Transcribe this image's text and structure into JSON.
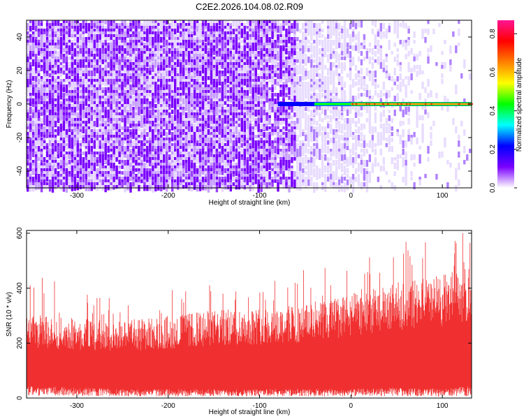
{
  "title": "C2E2.2026.104.08.02.R09",
  "chart_data": [
    {
      "type": "heatmap",
      "title": "C2E2.2026.104.08.02.R09",
      "xlabel": "Height of straight line (km)",
      "ylabel": "Frequency (Hz)",
      "xlim": [
        -355,
        132
      ],
      "ylim": [
        -50,
        50
      ],
      "x_ticks": [
        -300,
        -200,
        -100,
        0,
        100
      ],
      "y_ticks": [
        -40,
        -20,
        0,
        20,
        40
      ],
      "colorbar": {
        "label": "Normalized spectral amplitude",
        "range": [
          0,
          0.87
        ],
        "ticks": [
          0.0,
          0.2,
          0.4,
          0.6,
          0.8
        ],
        "colors": [
          "#ffffff",
          "#7a00ff",
          "#0000ff",
          "#00ffff",
          "#00ff00",
          "#ffff00",
          "#ff8000",
          "#ff0000",
          "#ff1493"
        ]
      },
      "signal_line": {
        "frequency_hz": 0,
        "start_km": -80,
        "end_km": 132
      },
      "grid": false
    },
    {
      "type": "area",
      "xlabel": "Height of straight line (km)",
      "ylabel": "SNR (10 * v/v)",
      "xlim": [
        -355,
        132
      ],
      "ylim": [
        0,
        610
      ],
      "x_ticks": [
        -300,
        -200,
        -100,
        0,
        100
      ],
      "y_ticks": [
        0,
        200,
        400,
        600
      ],
      "color": "#f03030",
      "envelope": {
        "x": [
          -355,
          -300,
          -250,
          -200,
          -150,
          -100,
          -50,
          0,
          50,
          100,
          132
        ],
        "lower": [
          40,
          35,
          30,
          30,
          30,
          30,
          30,
          30,
          35,
          30,
          40
        ],
        "upper": [
          300,
          290,
          285,
          300,
          320,
          330,
          340,
          380,
          420,
          450,
          480
        ],
        "peak": [
          450,
          440,
          380,
          400,
          420,
          440,
          470,
          520,
          560,
          610,
          600
        ]
      },
      "grid": false
    }
  ]
}
